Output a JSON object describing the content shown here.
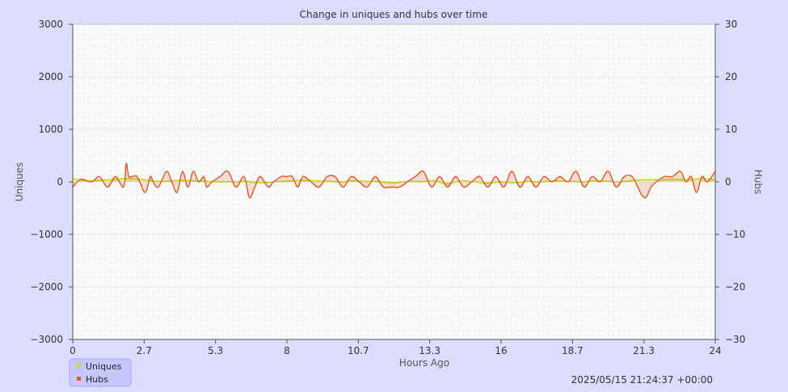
{
  "chart_data": {
    "type": "line",
    "title": "Change in uniques and hubs over time",
    "xlabel": "Hours Ago",
    "ylabel_left": "Uniques",
    "ylabel_right": "Hubs",
    "xlim": [
      0,
      24
    ],
    "ylim_left": [
      -3000,
      3000
    ],
    "ylim_right": [
      -30,
      30
    ],
    "x_ticks": [
      "0",
      "2.7",
      "5.3",
      "8",
      "10.7",
      "13.3",
      "16",
      "18.7",
      "21.3",
      "24"
    ],
    "y_left_ticks": [
      "3000",
      "2000",
      "1000",
      "0",
      "−1000",
      "−2000",
      "−3000"
    ],
    "y_right_ticks": [
      "30",
      "20",
      "10",
      "0",
      "−10",
      "−20",
      "−30"
    ],
    "timestamp": "2025/05/15 21:24:37 +00:00",
    "legend": [
      {
        "name": "Uniques",
        "color": "#c8dc3c"
      },
      {
        "name": "Hubs",
        "color": "#e05a28"
      }
    ],
    "grid": true,
    "legend_position": "bottom-left",
    "series": [
      {
        "name": "Uniques",
        "axis": "left",
        "color": "#c8dc3c",
        "x": [
          0,
          0.5,
          1,
          1.5,
          2,
          2.5,
          3,
          3.5,
          4,
          4.5,
          5,
          5.5,
          6,
          6.5,
          7,
          7.5,
          8,
          8.5,
          9,
          9.5,
          10,
          10.5,
          11,
          11.5,
          12,
          12.5,
          13,
          13.5,
          14,
          14.5,
          15,
          15.5,
          16,
          16.5,
          17,
          17.5,
          18,
          18.5,
          19,
          19.5,
          20,
          20.5,
          21,
          21.5,
          22,
          22.5,
          23,
          23.5,
          24
        ],
        "values": [
          60,
          20,
          30,
          40,
          60,
          50,
          20,
          10,
          30,
          20,
          10,
          0,
          0,
          10,
          -20,
          0,
          10,
          30,
          20,
          10,
          0,
          20,
          10,
          0,
          -20,
          10,
          0,
          20,
          -40,
          20,
          0,
          -30,
          0,
          -20,
          10,
          0,
          20,
          10,
          0,
          20,
          10,
          0,
          30,
          40,
          40,
          50,
          40,
          60,
          40
        ]
      },
      {
        "name": "Hubs",
        "axis": "right",
        "color": "#e05a28",
        "x": [
          0,
          0.3,
          0.7,
          1.0,
          1.3,
          1.6,
          1.9,
          2.0,
          2.1,
          2.4,
          2.7,
          2.9,
          3.0,
          3.2,
          3.5,
          3.7,
          3.9,
          4.1,
          4.3,
          4.5,
          4.7,
          4.9,
          5.0,
          5.2,
          5.5,
          5.8,
          6.1,
          6.4,
          6.6,
          6.8,
          7.0,
          7.3,
          7.5,
          7.8,
          8.0,
          8.2,
          8.4,
          8.6,
          8.9,
          9.2,
          9.5,
          9.8,
          10.1,
          10.4,
          10.7,
          11.0,
          11.3,
          11.6,
          11.9,
          12.2,
          12.5,
          12.8,
          13.1,
          13.4,
          13.7,
          14.0,
          14.3,
          14.6,
          14.9,
          15.2,
          15.5,
          15.8,
          16.1,
          16.4,
          16.7,
          17.0,
          17.3,
          17.6,
          17.9,
          18.2,
          18.5,
          18.8,
          19.1,
          19.4,
          19.7,
          20.0,
          20.3,
          20.6,
          20.9,
          21.2,
          21.4,
          21.6,
          21.8,
          22.1,
          22.4,
          22.7,
          22.9,
          23.1,
          23.3,
          23.5,
          23.7,
          24
        ],
        "values": [
          -1,
          0.5,
          0,
          1,
          -1,
          1,
          -1,
          3.5,
          1,
          1,
          -2,
          1,
          0,
          -1,
          2,
          0,
          -2,
          2,
          -1,
          2,
          0,
          1,
          -1,
          0,
          1,
          2,
          -1,
          1,
          -3,
          -1,
          1,
          -1,
          0,
          1,
          1,
          1,
          -1,
          1,
          0,
          -1,
          1,
          1,
          -1,
          1,
          0,
          -1,
          1,
          -1,
          -1,
          -1,
          0,
          1,
          2,
          -1,
          1,
          -1,
          1,
          -1,
          0,
          1,
          -1,
          1,
          -1,
          2,
          -1,
          1,
          -1,
          1,
          0,
          1,
          0,
          2,
          -1,
          1,
          0,
          2,
          -1,
          1,
          1,
          -2,
          -3,
          -1,
          0,
          1,
          1,
          2,
          0,
          1,
          -2,
          1,
          0,
          2
        ]
      }
    ]
  }
}
